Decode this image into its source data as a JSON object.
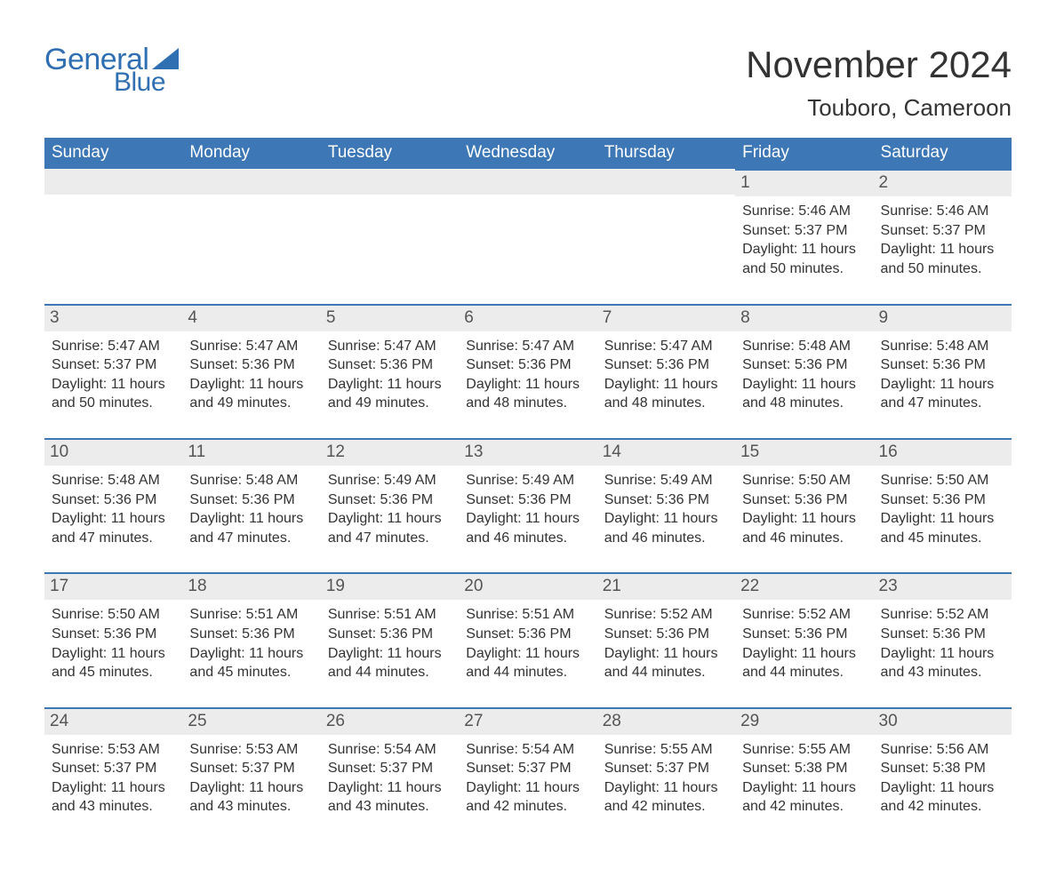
{
  "logo": {
    "text_general": "General",
    "text_blue": "Blue",
    "brand_color": "#2f6fb2",
    "sail_color": "#2f6fb2"
  },
  "header": {
    "title": "November 2024",
    "location": "Touboro, Cameroon",
    "title_fontsize": 42,
    "subtitle_fontsize": 26,
    "text_color": "#333333"
  },
  "calendar": {
    "header_bg": "#3d77b6",
    "header_text_color": "#ffffff",
    "day_bar_bg": "#ececec",
    "day_bar_border": "#3d77b6",
    "body_text_color": "#333333",
    "font_family": "Arial, Helvetica, sans-serif",
    "columns": [
      "Sunday",
      "Monday",
      "Tuesday",
      "Wednesday",
      "Thursday",
      "Friday",
      "Saturday"
    ],
    "labels": {
      "sunrise_prefix": "Sunrise: ",
      "sunset_prefix": "Sunset: ",
      "daylight_prefix": "Daylight: "
    },
    "weeks": [
      [
        null,
        null,
        null,
        null,
        null,
        {
          "day": "1",
          "sunrise": "5:46 AM",
          "sunset": "5:37 PM",
          "daylight": "11 hours and 50 minutes."
        },
        {
          "day": "2",
          "sunrise": "5:46 AM",
          "sunset": "5:37 PM",
          "daylight": "11 hours and 50 minutes."
        }
      ],
      [
        {
          "day": "3",
          "sunrise": "5:47 AM",
          "sunset": "5:37 PM",
          "daylight": "11 hours and 50 minutes."
        },
        {
          "day": "4",
          "sunrise": "5:47 AM",
          "sunset": "5:36 PM",
          "daylight": "11 hours and 49 minutes."
        },
        {
          "day": "5",
          "sunrise": "5:47 AM",
          "sunset": "5:36 PM",
          "daylight": "11 hours and 49 minutes."
        },
        {
          "day": "6",
          "sunrise": "5:47 AM",
          "sunset": "5:36 PM",
          "daylight": "11 hours and 48 minutes."
        },
        {
          "day": "7",
          "sunrise": "5:47 AM",
          "sunset": "5:36 PM",
          "daylight": "11 hours and 48 minutes."
        },
        {
          "day": "8",
          "sunrise": "5:48 AM",
          "sunset": "5:36 PM",
          "daylight": "11 hours and 48 minutes."
        },
        {
          "day": "9",
          "sunrise": "5:48 AM",
          "sunset": "5:36 PM",
          "daylight": "11 hours and 47 minutes."
        }
      ],
      [
        {
          "day": "10",
          "sunrise": "5:48 AM",
          "sunset": "5:36 PM",
          "daylight": "11 hours and 47 minutes."
        },
        {
          "day": "11",
          "sunrise": "5:48 AM",
          "sunset": "5:36 PM",
          "daylight": "11 hours and 47 minutes."
        },
        {
          "day": "12",
          "sunrise": "5:49 AM",
          "sunset": "5:36 PM",
          "daylight": "11 hours and 47 minutes."
        },
        {
          "day": "13",
          "sunrise": "5:49 AM",
          "sunset": "5:36 PM",
          "daylight": "11 hours and 46 minutes."
        },
        {
          "day": "14",
          "sunrise": "5:49 AM",
          "sunset": "5:36 PM",
          "daylight": "11 hours and 46 minutes."
        },
        {
          "day": "15",
          "sunrise": "5:50 AM",
          "sunset": "5:36 PM",
          "daylight": "11 hours and 46 minutes."
        },
        {
          "day": "16",
          "sunrise": "5:50 AM",
          "sunset": "5:36 PM",
          "daylight": "11 hours and 45 minutes."
        }
      ],
      [
        {
          "day": "17",
          "sunrise": "5:50 AM",
          "sunset": "5:36 PM",
          "daylight": "11 hours and 45 minutes."
        },
        {
          "day": "18",
          "sunrise": "5:51 AM",
          "sunset": "5:36 PM",
          "daylight": "11 hours and 45 minutes."
        },
        {
          "day": "19",
          "sunrise": "5:51 AM",
          "sunset": "5:36 PM",
          "daylight": "11 hours and 44 minutes."
        },
        {
          "day": "20",
          "sunrise": "5:51 AM",
          "sunset": "5:36 PM",
          "daylight": "11 hours and 44 minutes."
        },
        {
          "day": "21",
          "sunrise": "5:52 AM",
          "sunset": "5:36 PM",
          "daylight": "11 hours and 44 minutes."
        },
        {
          "day": "22",
          "sunrise": "5:52 AM",
          "sunset": "5:36 PM",
          "daylight": "11 hours and 44 minutes."
        },
        {
          "day": "23",
          "sunrise": "5:52 AM",
          "sunset": "5:36 PM",
          "daylight": "11 hours and 43 minutes."
        }
      ],
      [
        {
          "day": "24",
          "sunrise": "5:53 AM",
          "sunset": "5:37 PM",
          "daylight": "11 hours and 43 minutes."
        },
        {
          "day": "25",
          "sunrise": "5:53 AM",
          "sunset": "5:37 PM",
          "daylight": "11 hours and 43 minutes."
        },
        {
          "day": "26",
          "sunrise": "5:54 AM",
          "sunset": "5:37 PM",
          "daylight": "11 hours and 43 minutes."
        },
        {
          "day": "27",
          "sunrise": "5:54 AM",
          "sunset": "5:37 PM",
          "daylight": "11 hours and 42 minutes."
        },
        {
          "day": "28",
          "sunrise": "5:55 AM",
          "sunset": "5:37 PM",
          "daylight": "11 hours and 42 minutes."
        },
        {
          "day": "29",
          "sunrise": "5:55 AM",
          "sunset": "5:38 PM",
          "daylight": "11 hours and 42 minutes."
        },
        {
          "day": "30",
          "sunrise": "5:56 AM",
          "sunset": "5:38 PM",
          "daylight": "11 hours and 42 minutes."
        }
      ]
    ]
  }
}
